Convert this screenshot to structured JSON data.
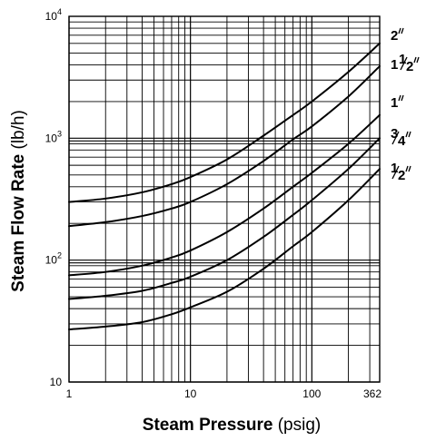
{
  "chart_data": {
    "type": "line",
    "title": "",
    "xlabel": {
      "bold": "Steam Pressure",
      "normal": " (psig)"
    },
    "ylabel": {
      "bold": "Steam Flow Rate",
      "normal": " (lb/h)"
    },
    "x_scale": "log",
    "y_scale": "log",
    "xlim": [
      1,
      362
    ],
    "ylim": [
      10,
      10000
    ],
    "grid": true,
    "x_ticks": [
      {
        "value": 1,
        "label": "1"
      },
      {
        "value": 10,
        "label": "10"
      },
      {
        "value": 100,
        "label": "100"
      },
      {
        "value": 362,
        "label": "362"
      }
    ],
    "y_ticks": [
      {
        "value": 10,
        "base": "10",
        "exp": ""
      },
      {
        "value": 100,
        "base": "10",
        "exp": "2"
      },
      {
        "value": 1000,
        "base": "10",
        "exp": "3"
      },
      {
        "value": 10000,
        "base": "10",
        "exp": "4"
      }
    ],
    "series": [
      {
        "name": "2″",
        "label_whole": "2",
        "label_num": "",
        "label_den": "",
        "x": [
          1,
          2,
          4,
          7,
          10,
          20,
          40,
          70,
          100,
          200,
          362
        ],
        "y": [
          300,
          320,
          360,
          420,
          480,
          670,
          1050,
          1550,
          2000,
          3500,
          6000
        ]
      },
      {
        "name": "1½″",
        "label_whole": "1",
        "label_num": "1",
        "label_den": "2",
        "x": [
          1,
          2,
          4,
          7,
          10,
          20,
          40,
          70,
          100,
          200,
          362
        ],
        "y": [
          190,
          205,
          230,
          265,
          300,
          420,
          650,
          980,
          1250,
          2200,
          3900
        ]
      },
      {
        "name": "1″",
        "label_whole": "1",
        "label_num": "",
        "label_den": "",
        "x": [
          1,
          2,
          4,
          7,
          10,
          20,
          40,
          70,
          100,
          200,
          362
        ],
        "y": [
          75,
          80,
          90,
          105,
          120,
          170,
          265,
          400,
          520,
          900,
          1550
        ]
      },
      {
        "name": "¾″",
        "label_whole": "",
        "label_num": "3",
        "label_den": "4",
        "x": [
          1,
          2,
          4,
          7,
          10,
          20,
          40,
          70,
          100,
          200,
          362
        ],
        "y": [
          48,
          51,
          56,
          65,
          73,
          100,
          155,
          235,
          310,
          560,
          1000
        ]
      },
      {
        "name": "½″",
        "label_whole": "",
        "label_num": "1",
        "label_den": "2",
        "x": [
          1,
          2,
          4,
          7,
          10,
          20,
          40,
          70,
          100,
          200,
          362
        ],
        "y": [
          27,
          28.5,
          31,
          36,
          41,
          55,
          85,
          130,
          170,
          310,
          560
        ]
      }
    ]
  }
}
